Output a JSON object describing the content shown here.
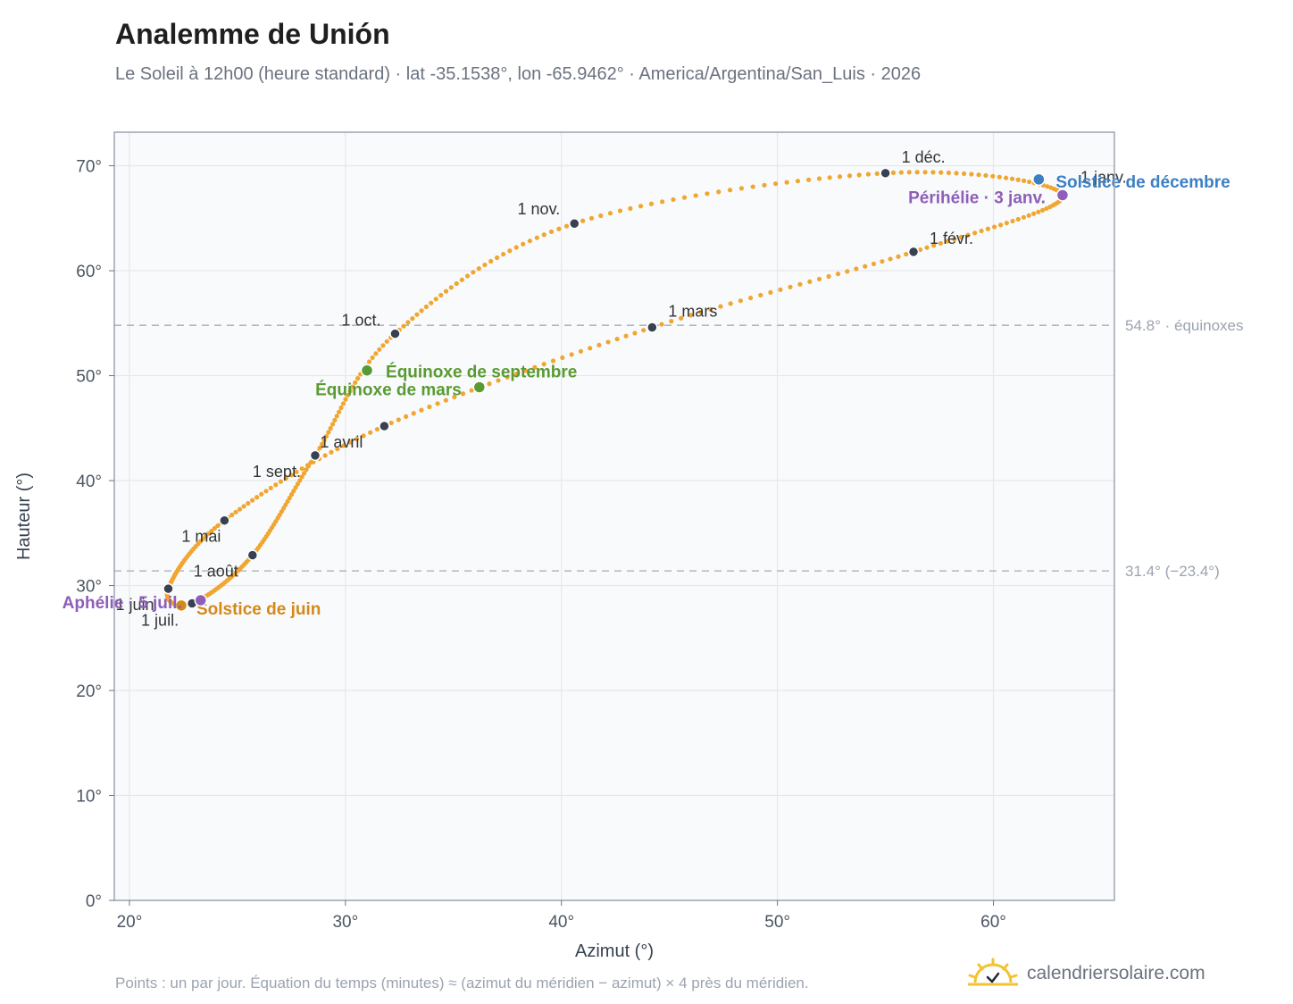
{
  "header": {
    "title": "Analemme de Unión",
    "subtitle": "Le Soleil à 12h00 (heure standard) · lat -35.1538°, lon -65.9462° · America/Argentina/San_Luis · 2026"
  },
  "footer": {
    "note": "Points : un par jour. Équation du temps (minutes) ≈ (azimut du méridien − azimut) × 4 près du méridien.",
    "brand": "calendriersolaire.com",
    "brand_icon": "sun-icon"
  },
  "colors": {
    "curve": "#f0a630",
    "month_dot": "#374151",
    "equinox": "#5a9a32",
    "solstice_june": "#d4891a",
    "solstice_dec": "#3b7fc4",
    "apsis": "#8e5eb8",
    "refline": "#9ca3af"
  },
  "chart_data": {
    "type": "scatter",
    "title": "Analemme de Unión",
    "xlabel": "Azimut (°)",
    "ylabel": "Hauteur (°)",
    "xlim": [
      19.3,
      65.6
    ],
    "ylim": [
      0,
      73.2
    ],
    "x_ticks": [
      20,
      30,
      40,
      50,
      60
    ],
    "y_ticks": [
      0,
      10,
      20,
      30,
      40,
      50,
      60,
      70
    ],
    "x_tick_suffix": "°",
    "y_tick_suffix": "°",
    "grid": true,
    "reference_lines": [
      {
        "y": 54.8,
        "label": "54.8° · équinoxes"
      },
      {
        "y": 31.4,
        "label": "31.4° (−23.4°)"
      }
    ],
    "analemma_monthly": [
      {
        "label": "1 janv.",
        "x": 63.2,
        "y": 67.2
      },
      {
        "label": "1 févr.",
        "x": 56.3,
        "y": 61.8
      },
      {
        "label": "1 mars",
        "x": 44.2,
        "y": 54.6
      },
      {
        "label": "1 avril",
        "x": 31.8,
        "y": 45.2
      },
      {
        "label": "1 mai",
        "x": 24.4,
        "y": 36.2
      },
      {
        "label": "1 juin",
        "x": 21.8,
        "y": 29.7
      },
      {
        "label": "1 juil.",
        "x": 22.9,
        "y": 28.3
      },
      {
        "label": "1 août",
        "x": 25.7,
        "y": 32.9
      },
      {
        "label": "1 sept.",
        "x": 28.6,
        "y": 42.4
      },
      {
        "label": "1 oct.",
        "x": 32.3,
        "y": 54.0
      },
      {
        "label": "1 nov.",
        "x": 40.6,
        "y": 64.5
      },
      {
        "label": "1 déc.",
        "x": 55.0,
        "y": 69.3
      }
    ],
    "events": [
      {
        "label": "Équinoxe de mars",
        "x": 36.2,
        "y": 48.9,
        "kind": "equinox"
      },
      {
        "label": "Équinoxe de septembre",
        "x": 31.0,
        "y": 50.5,
        "kind": "equinox"
      },
      {
        "label": "Solstice de juin",
        "x": 22.4,
        "y": 28.1,
        "kind": "solstice_june"
      },
      {
        "label": "Solstice de décembre",
        "x": 62.1,
        "y": 68.7,
        "kind": "solstice_dec"
      },
      {
        "label": "Aphélie · 5 juil.",
        "x": 23.3,
        "y": 28.6,
        "kind": "apsis"
      },
      {
        "label": "Périhélie · 3 janv.",
        "x": 63.2,
        "y": 67.2,
        "kind": "apsis"
      }
    ]
  }
}
